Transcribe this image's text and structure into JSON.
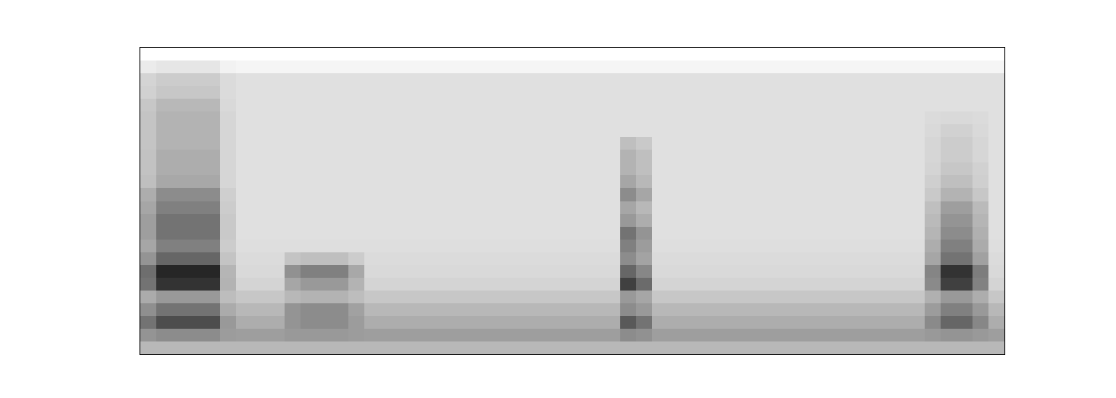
{
  "chart_data": {
    "type": "heatmap",
    "tick_labels": false,
    "zlim": [
      0,
      1
    ],
    "z": [
      [
        0,
        0,
        0,
        0,
        0,
        0,
        0,
        0,
        0,
        0,
        0,
        0,
        0,
        0,
        0,
        0,
        0,
        0,
        0,
        0,
        0,
        0,
        0,
        0,
        0,
        0,
        0,
        0,
        0,
        0,
        0,
        0,
        0,
        0,
        0,
        0,
        0,
        0,
        0,
        0,
        0,
        0,
        0,
        0,
        0,
        0,
        0,
        0,
        0,
        0,
        0,
        0,
        0,
        0
      ],
      [
        0.08,
        0.1,
        0.1,
        0.1,
        0.1,
        0.05,
        0.04,
        0.04,
        0.04,
        0.04,
        0.04,
        0.04,
        0.04,
        0.04,
        0.04,
        0.04,
        0.04,
        0.04,
        0.04,
        0.04,
        0.04,
        0.04,
        0.04,
        0.04,
        0.04,
        0.04,
        0.04,
        0.04,
        0.04,
        0.04,
        0.04,
        0.04,
        0.04,
        0.04,
        0.04,
        0.04,
        0.04,
        0.04,
        0.04,
        0.04,
        0.04,
        0.04,
        0.04,
        0.04,
        0.04,
        0.04,
        0.04,
        0.04,
        0.04,
        0.04,
        0.04,
        0.04,
        0.04,
        0.04
      ],
      [
        0.17,
        0.2,
        0.2,
        0.2,
        0.2,
        0.14,
        0.12,
        0.12,
        0.12,
        0.12,
        0.12,
        0.12,
        0.12,
        0.12,
        0.12,
        0.12,
        0.12,
        0.12,
        0.12,
        0.12,
        0.12,
        0.12,
        0.12,
        0.12,
        0.12,
        0.12,
        0.12,
        0.12,
        0.12,
        0.12,
        0.12,
        0.12,
        0.12,
        0.12,
        0.12,
        0.12,
        0.12,
        0.12,
        0.12,
        0.12,
        0.12,
        0.12,
        0.12,
        0.12,
        0.12,
        0.12,
        0.12,
        0.12,
        0.12,
        0.12,
        0.12,
        0.12,
        0.12,
        0.12
      ],
      [
        0.18,
        0.22,
        0.22,
        0.22,
        0.22,
        0.14,
        0.12,
        0.12,
        0.12,
        0.12,
        0.12,
        0.12,
        0.12,
        0.12,
        0.12,
        0.12,
        0.12,
        0.12,
        0.12,
        0.12,
        0.12,
        0.12,
        0.12,
        0.12,
        0.12,
        0.12,
        0.12,
        0.12,
        0.12,
        0.12,
        0.12,
        0.12,
        0.12,
        0.12,
        0.12,
        0.12,
        0.12,
        0.12,
        0.12,
        0.12,
        0.12,
        0.12,
        0.12,
        0.12,
        0.12,
        0.12,
        0.12,
        0.12,
        0.12,
        0.12,
        0.12,
        0.12,
        0.12,
        0.12
      ],
      [
        0.22,
        0.28,
        0.28,
        0.28,
        0.28,
        0.15,
        0.12,
        0.12,
        0.12,
        0.12,
        0.12,
        0.12,
        0.12,
        0.12,
        0.12,
        0.12,
        0.12,
        0.12,
        0.12,
        0.12,
        0.12,
        0.12,
        0.12,
        0.12,
        0.12,
        0.12,
        0.12,
        0.12,
        0.12,
        0.12,
        0.12,
        0.12,
        0.12,
        0.12,
        0.12,
        0.12,
        0.12,
        0.12,
        0.12,
        0.12,
        0.12,
        0.12,
        0.12,
        0.12,
        0.12,
        0.12,
        0.12,
        0.12,
        0.12,
        0.12,
        0.12,
        0.12,
        0.12,
        0.12
      ],
      [
        0.23,
        0.3,
        0.3,
        0.3,
        0.3,
        0.16,
        0.12,
        0.12,
        0.12,
        0.12,
        0.12,
        0.12,
        0.12,
        0.12,
        0.12,
        0.12,
        0.12,
        0.12,
        0.12,
        0.12,
        0.12,
        0.12,
        0.12,
        0.12,
        0.12,
        0.12,
        0.12,
        0.12,
        0.12,
        0.12,
        0.12,
        0.12,
        0.12,
        0.12,
        0.12,
        0.12,
        0.12,
        0.12,
        0.12,
        0.12,
        0.12,
        0.12,
        0.12,
        0.12,
        0.12,
        0.12,
        0.12,
        0.12,
        0.12,
        0.14,
        0.15,
        0.15,
        0.14,
        0.12
      ],
      [
        0.23,
        0.3,
        0.3,
        0.3,
        0.3,
        0.16,
        0.12,
        0.12,
        0.12,
        0.12,
        0.12,
        0.12,
        0.12,
        0.12,
        0.12,
        0.12,
        0.12,
        0.12,
        0.12,
        0.12,
        0.12,
        0.12,
        0.12,
        0.12,
        0.12,
        0.12,
        0.12,
        0.12,
        0.12,
        0.12,
        0.12,
        0.12,
        0.12,
        0.12,
        0.12,
        0.12,
        0.12,
        0.12,
        0.12,
        0.12,
        0.12,
        0.12,
        0.12,
        0.12,
        0.12,
        0.12,
        0.12,
        0.12,
        0.12,
        0.15,
        0.18,
        0.18,
        0.15,
        0.12
      ],
      [
        0.23,
        0.3,
        0.3,
        0.3,
        0.3,
        0.16,
        0.12,
        0.12,
        0.12,
        0.12,
        0.12,
        0.12,
        0.12,
        0.12,
        0.12,
        0.12,
        0.12,
        0.12,
        0.12,
        0.12,
        0.12,
        0.12,
        0.12,
        0.12,
        0.12,
        0.12,
        0.12,
        0.12,
        0.12,
        0.12,
        0.25,
        0.21,
        0.12,
        0.12,
        0.12,
        0.12,
        0.12,
        0.12,
        0.12,
        0.12,
        0.12,
        0.12,
        0.12,
        0.12,
        0.12,
        0.12,
        0.12,
        0.12,
        0.12,
        0.16,
        0.2,
        0.2,
        0.16,
        0.12
      ],
      [
        0.24,
        0.32,
        0.32,
        0.32,
        0.32,
        0.16,
        0.12,
        0.12,
        0.12,
        0.12,
        0.12,
        0.12,
        0.12,
        0.12,
        0.12,
        0.12,
        0.12,
        0.12,
        0.12,
        0.12,
        0.12,
        0.12,
        0.12,
        0.12,
        0.12,
        0.12,
        0.12,
        0.12,
        0.12,
        0.12,
        0.3,
        0.25,
        0.12,
        0.12,
        0.12,
        0.12,
        0.12,
        0.12,
        0.12,
        0.12,
        0.12,
        0.12,
        0.12,
        0.12,
        0.12,
        0.12,
        0.12,
        0.12,
        0.12,
        0.16,
        0.2,
        0.2,
        0.16,
        0.12
      ],
      [
        0.24,
        0.32,
        0.32,
        0.32,
        0.32,
        0.16,
        0.12,
        0.12,
        0.12,
        0.12,
        0.12,
        0.12,
        0.12,
        0.12,
        0.12,
        0.12,
        0.12,
        0.12,
        0.12,
        0.12,
        0.12,
        0.12,
        0.12,
        0.12,
        0.12,
        0.12,
        0.12,
        0.12,
        0.12,
        0.12,
        0.3,
        0.25,
        0.12,
        0.12,
        0.12,
        0.12,
        0.12,
        0.12,
        0.12,
        0.12,
        0.12,
        0.12,
        0.12,
        0.12,
        0.12,
        0.12,
        0.12,
        0.12,
        0.12,
        0.17,
        0.22,
        0.22,
        0.18,
        0.12
      ],
      [
        0.25,
        0.34,
        0.34,
        0.34,
        0.34,
        0.16,
        0.12,
        0.12,
        0.12,
        0.12,
        0.12,
        0.12,
        0.12,
        0.12,
        0.12,
        0.12,
        0.12,
        0.12,
        0.12,
        0.12,
        0.12,
        0.12,
        0.12,
        0.12,
        0.12,
        0.12,
        0.12,
        0.12,
        0.12,
        0.12,
        0.35,
        0.28,
        0.12,
        0.12,
        0.12,
        0.12,
        0.12,
        0.12,
        0.12,
        0.12,
        0.12,
        0.12,
        0.12,
        0.12,
        0.12,
        0.12,
        0.12,
        0.12,
        0.12,
        0.19,
        0.25,
        0.25,
        0.19,
        0.12
      ],
      [
        0.32,
        0.45,
        0.45,
        0.45,
        0.45,
        0.19,
        0.12,
        0.12,
        0.12,
        0.12,
        0.12,
        0.12,
        0.12,
        0.12,
        0.12,
        0.12,
        0.12,
        0.12,
        0.12,
        0.12,
        0.12,
        0.12,
        0.12,
        0.12,
        0.12,
        0.12,
        0.12,
        0.12,
        0.12,
        0.12,
        0.45,
        0.35,
        0.12,
        0.12,
        0.12,
        0.12,
        0.12,
        0.12,
        0.12,
        0.12,
        0.12,
        0.12,
        0.12,
        0.12,
        0.12,
        0.12,
        0.12,
        0.12,
        0.12,
        0.21,
        0.3,
        0.3,
        0.22,
        0.12
      ],
      [
        0.35,
        0.5,
        0.5,
        0.5,
        0.5,
        0.2,
        0.12,
        0.12,
        0.12,
        0.12,
        0.12,
        0.12,
        0.12,
        0.12,
        0.12,
        0.12,
        0.12,
        0.12,
        0.12,
        0.12,
        0.12,
        0.12,
        0.12,
        0.12,
        0.12,
        0.12,
        0.12,
        0.12,
        0.12,
        0.12,
        0.35,
        0.28,
        0.12,
        0.12,
        0.12,
        0.12,
        0.12,
        0.12,
        0.12,
        0.12,
        0.12,
        0.12,
        0.12,
        0.12,
        0.12,
        0.12,
        0.12,
        0.12,
        0.12,
        0.25,
        0.38,
        0.38,
        0.27,
        0.12
      ],
      [
        0.38,
        0.55,
        0.55,
        0.55,
        0.55,
        0.21,
        0.12,
        0.12,
        0.12,
        0.12,
        0.12,
        0.12,
        0.12,
        0.12,
        0.12,
        0.12,
        0.12,
        0.12,
        0.12,
        0.12,
        0.12,
        0.12,
        0.12,
        0.12,
        0.12,
        0.12,
        0.12,
        0.12,
        0.12,
        0.12,
        0.4,
        0.32,
        0.12,
        0.12,
        0.12,
        0.12,
        0.12,
        0.12,
        0.12,
        0.12,
        0.12,
        0.12,
        0.12,
        0.12,
        0.12,
        0.12,
        0.12,
        0.12,
        0.12,
        0.27,
        0.42,
        0.42,
        0.29,
        0.12
      ],
      [
        0.38,
        0.55,
        0.55,
        0.55,
        0.55,
        0.21,
        0.12,
        0.12,
        0.12,
        0.12,
        0.12,
        0.12,
        0.12,
        0.12,
        0.12,
        0.12,
        0.12,
        0.12,
        0.12,
        0.12,
        0.12,
        0.12,
        0.12,
        0.12,
        0.12,
        0.12,
        0.12,
        0.12,
        0.12,
        0.12,
        0.55,
        0.42,
        0.12,
        0.12,
        0.12,
        0.12,
        0.12,
        0.12,
        0.12,
        0.12,
        0.12,
        0.12,
        0.12,
        0.12,
        0.12,
        0.12,
        0.12,
        0.12,
        0.12,
        0.29,
        0.45,
        0.45,
        0.31,
        0.12
      ],
      [
        0.35,
        0.5,
        0.5,
        0.5,
        0.5,
        0.2,
        0.13,
        0.13,
        0.13,
        0.13,
        0.13,
        0.13,
        0.13,
        0.13,
        0.13,
        0.13,
        0.13,
        0.13,
        0.13,
        0.13,
        0.13,
        0.13,
        0.13,
        0.13,
        0.13,
        0.13,
        0.13,
        0.13,
        0.13,
        0.13,
        0.5,
        0.39,
        0.13,
        0.13,
        0.13,
        0.13,
        0.13,
        0.13,
        0.13,
        0.13,
        0.13,
        0.13,
        0.13,
        0.13,
        0.13,
        0.13,
        0.13,
        0.13,
        0.13,
        0.32,
        0.5,
        0.5,
        0.33,
        0.13
      ],
      [
        0.42,
        0.6,
        0.6,
        0.6,
        0.6,
        0.23,
        0.14,
        0.14,
        0.14,
        0.23,
        0.25,
        0.25,
        0.25,
        0.2,
        0.14,
        0.14,
        0.14,
        0.14,
        0.14,
        0.14,
        0.14,
        0.14,
        0.14,
        0.14,
        0.14,
        0.14,
        0.14,
        0.14,
        0.14,
        0.14,
        0.45,
        0.36,
        0.14,
        0.14,
        0.14,
        0.14,
        0.14,
        0.14,
        0.14,
        0.14,
        0.14,
        0.14,
        0.14,
        0.14,
        0.14,
        0.14,
        0.14,
        0.14,
        0.14,
        0.35,
        0.55,
        0.55,
        0.37,
        0.14
      ],
      [
        0.57,
        0.85,
        0.85,
        0.85,
        0.85,
        0.29,
        0.15,
        0.15,
        0.15,
        0.43,
        0.5,
        0.5,
        0.5,
        0.34,
        0.15,
        0.15,
        0.15,
        0.15,
        0.15,
        0.15,
        0.15,
        0.15,
        0.15,
        0.15,
        0.15,
        0.15,
        0.15,
        0.15,
        0.15,
        0.15,
        0.6,
        0.47,
        0.15,
        0.15,
        0.15,
        0.15,
        0.15,
        0.15,
        0.15,
        0.15,
        0.15,
        0.15,
        0.15,
        0.15,
        0.15,
        0.15,
        0.15,
        0.15,
        0.15,
        0.48,
        0.8,
        0.8,
        0.51,
        0.15
      ],
      [
        0.55,
        0.8,
        0.8,
        0.8,
        0.8,
        0.3,
        0.17,
        0.17,
        0.17,
        0.35,
        0.4,
        0.4,
        0.4,
        0.3,
        0.17,
        0.17,
        0.17,
        0.17,
        0.17,
        0.17,
        0.17,
        0.17,
        0.17,
        0.17,
        0.17,
        0.17,
        0.17,
        0.17,
        0.17,
        0.17,
        0.75,
        0.58,
        0.17,
        0.17,
        0.17,
        0.17,
        0.17,
        0.17,
        0.17,
        0.17,
        0.17,
        0.17,
        0.17,
        0.17,
        0.17,
        0.17,
        0.17,
        0.17,
        0.17,
        0.46,
        0.75,
        0.75,
        0.49,
        0.17
      ],
      [
        0.33,
        0.4,
        0.4,
        0.4,
        0.4,
        0.26,
        0.22,
        0.22,
        0.22,
        0.28,
        0.3,
        0.3,
        0.3,
        0.26,
        0.22,
        0.22,
        0.22,
        0.22,
        0.22,
        0.22,
        0.22,
        0.22,
        0.22,
        0.22,
        0.22,
        0.22,
        0.22,
        0.22,
        0.22,
        0.22,
        0.4,
        0.35,
        0.22,
        0.22,
        0.22,
        0.22,
        0.22,
        0.22,
        0.22,
        0.22,
        0.22,
        0.22,
        0.22,
        0.22,
        0.22,
        0.22,
        0.22,
        0.22,
        0.22,
        0.31,
        0.4,
        0.4,
        0.32,
        0.22
      ],
      [
        0.44,
        0.55,
        0.55,
        0.55,
        0.55,
        0.33,
        0.28,
        0.28,
        0.28,
        0.42,
        0.45,
        0.45,
        0.45,
        0.37,
        0.28,
        0.28,
        0.28,
        0.28,
        0.28,
        0.28,
        0.28,
        0.28,
        0.28,
        0.28,
        0.28,
        0.28,
        0.28,
        0.28,
        0.28,
        0.28,
        0.45,
        0.4,
        0.28,
        0.28,
        0.28,
        0.28,
        0.28,
        0.28,
        0.28,
        0.28,
        0.28,
        0.28,
        0.28,
        0.28,
        0.28,
        0.28,
        0.28,
        0.28,
        0.28,
        0.39,
        0.5,
        0.5,
        0.4,
        0.28
      ],
      [
        0.55,
        0.7,
        0.7,
        0.7,
        0.7,
        0.4,
        0.32,
        0.32,
        0.32,
        0.42,
        0.45,
        0.45,
        0.45,
        0.39,
        0.32,
        0.32,
        0.32,
        0.32,
        0.32,
        0.32,
        0.32,
        0.32,
        0.32,
        0.32,
        0.32,
        0.32,
        0.32,
        0.32,
        0.32,
        0.32,
        0.65,
        0.55,
        0.32,
        0.32,
        0.32,
        0.32,
        0.32,
        0.32,
        0.32,
        0.32,
        0.32,
        0.32,
        0.32,
        0.32,
        0.32,
        0.32,
        0.32,
        0.32,
        0.32,
        0.46,
        0.6,
        0.6,
        0.47,
        0.32
      ],
      [
        0.42,
        0.45,
        0.45,
        0.45,
        0.45,
        0.39,
        0.38,
        0.38,
        0.38,
        0.4,
        0.4,
        0.4,
        0.4,
        0.39,
        0.38,
        0.38,
        0.38,
        0.38,
        0.38,
        0.38,
        0.38,
        0.38,
        0.38,
        0.38,
        0.38,
        0.38,
        0.38,
        0.38,
        0.38,
        0.38,
        0.45,
        0.43,
        0.38,
        0.38,
        0.38,
        0.38,
        0.38,
        0.38,
        0.38,
        0.38,
        0.38,
        0.38,
        0.38,
        0.38,
        0.38,
        0.38,
        0.38,
        0.38,
        0.38,
        0.4,
        0.42,
        0.42,
        0.4,
        0.38
      ],
      [
        0.28,
        0.28,
        0.28,
        0.28,
        0.28,
        0.28,
        0.28,
        0.28,
        0.28,
        0.28,
        0.28,
        0.28,
        0.28,
        0.28,
        0.28,
        0.28,
        0.28,
        0.28,
        0.28,
        0.28,
        0.28,
        0.28,
        0.28,
        0.28,
        0.28,
        0.28,
        0.28,
        0.28,
        0.28,
        0.28,
        0.28,
        0.28,
        0.28,
        0.28,
        0.28,
        0.28,
        0.28,
        0.28,
        0.28,
        0.28,
        0.28,
        0.28,
        0.28,
        0.28,
        0.28,
        0.28,
        0.28,
        0.28,
        0.28,
        0.28,
        0.28,
        0.28,
        0.28,
        0.28
      ]
    ]
  }
}
